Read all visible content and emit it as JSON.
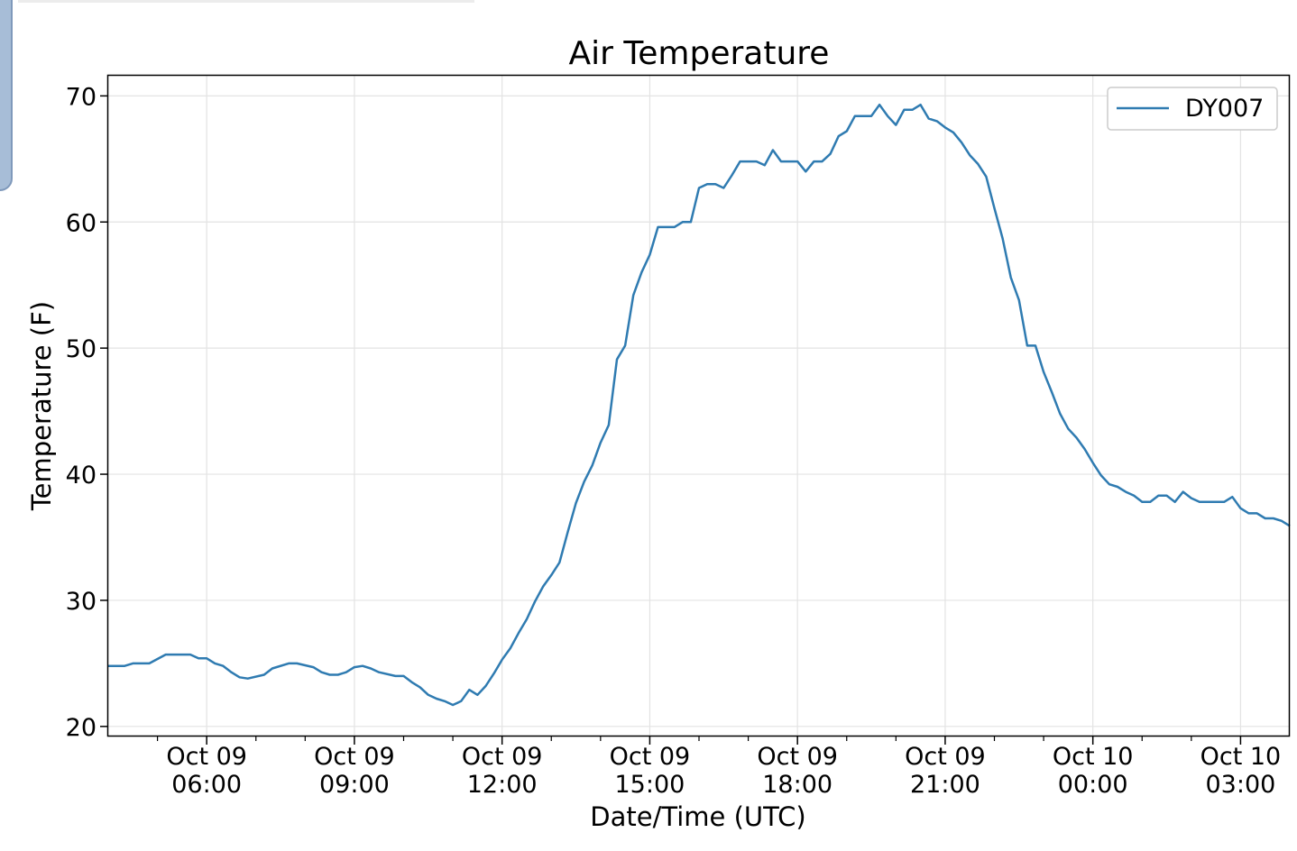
{
  "chart_data": {
    "type": "line",
    "title": "Air Temperature",
    "xlabel": "Date/Time (UTC)",
    "ylabel": "Temperature (F)",
    "xlim": [
      "2019-10-09T04:00",
      "2019-10-10T04:00"
    ],
    "ylim": [
      19.2,
      71.6
    ],
    "grid": true,
    "legend_position": "top-right",
    "x_ticks": [
      {
        "value": "2019-10-09T06:00",
        "label_line1": "Oct 09",
        "label_line2": "06:00"
      },
      {
        "value": "2019-10-09T09:00",
        "label_line1": "Oct 09",
        "label_line2": "09:00"
      },
      {
        "value": "2019-10-09T12:00",
        "label_line1": "Oct 09",
        "label_line2": "12:00"
      },
      {
        "value": "2019-10-09T15:00",
        "label_line1": "Oct 09",
        "label_line2": "15:00"
      },
      {
        "value": "2019-10-09T18:00",
        "label_line1": "Oct 09",
        "label_line2": "18:00"
      },
      {
        "value": "2019-10-09T21:00",
        "label_line1": "Oct 09",
        "label_line2": "21:00"
      },
      {
        "value": "2019-10-10T00:00",
        "label_line1": "Oct 10",
        "label_line2": "00:00"
      },
      {
        "value": "2019-10-10T03:00",
        "label_line1": "Oct 10",
        "label_line2": "03:00"
      }
    ],
    "x_minor_ticks": [
      "2019-10-09T05:00",
      "2019-10-09T07:00",
      "2019-10-09T08:00",
      "2019-10-09T10:00",
      "2019-10-09T11:00",
      "2019-10-09T13:00",
      "2019-10-09T14:00",
      "2019-10-09T16:00",
      "2019-10-09T17:00",
      "2019-10-09T19:00",
      "2019-10-09T20:00",
      "2019-10-09T22:00",
      "2019-10-09T23:00",
      "2019-10-10T01:00",
      "2019-10-10T02:00"
    ],
    "y_ticks": [
      20,
      30,
      40,
      50,
      60,
      70
    ],
    "series": [
      {
        "name": "DY007",
        "color": "#2f7bb1",
        "points": [
          [
            "2019-10-09T04:00",
            24.8
          ],
          [
            "2019-10-09T04:20",
            24.8
          ],
          [
            "2019-10-09T04:30",
            25.0
          ],
          [
            "2019-10-09T04:50",
            25.0
          ],
          [
            "2019-10-09T05:10",
            25.7
          ],
          [
            "2019-10-09T05:40",
            25.7
          ],
          [
            "2019-10-09T05:50",
            25.4
          ],
          [
            "2019-10-09T06:00",
            25.4
          ],
          [
            "2019-10-09T06:10",
            25.0
          ],
          [
            "2019-10-09T06:20",
            24.8
          ],
          [
            "2019-10-09T06:30",
            24.3
          ],
          [
            "2019-10-09T06:40",
            23.9
          ],
          [
            "2019-10-09T06:50",
            23.8
          ],
          [
            "2019-10-09T07:10",
            24.1
          ],
          [
            "2019-10-09T07:20",
            24.6
          ],
          [
            "2019-10-09T07:40",
            25.0
          ],
          [
            "2019-10-09T07:50",
            25.0
          ],
          [
            "2019-10-09T08:10",
            24.7
          ],
          [
            "2019-10-09T08:20",
            24.3
          ],
          [
            "2019-10-09T08:30",
            24.1
          ],
          [
            "2019-10-09T08:40",
            24.1
          ],
          [
            "2019-10-09T08:50",
            24.3
          ],
          [
            "2019-10-09T09:00",
            24.7
          ],
          [
            "2019-10-09T09:10",
            24.8
          ],
          [
            "2019-10-09T09:20",
            24.6
          ],
          [
            "2019-10-09T09:30",
            24.3
          ],
          [
            "2019-10-09T09:50",
            24.0
          ],
          [
            "2019-10-09T10:00",
            24.0
          ],
          [
            "2019-10-09T10:10",
            23.5
          ],
          [
            "2019-10-09T10:20",
            23.1
          ],
          [
            "2019-10-09T10:30",
            22.5
          ],
          [
            "2019-10-09T10:40",
            22.2
          ],
          [
            "2019-10-09T10:50",
            22.0
          ],
          [
            "2019-10-09T11:00",
            21.7
          ],
          [
            "2019-10-09T11:10",
            22.0
          ],
          [
            "2019-10-09T11:20",
            22.9
          ],
          [
            "2019-10-09T11:30",
            22.5
          ],
          [
            "2019-10-09T11:40",
            23.2
          ],
          [
            "2019-10-09T11:50",
            24.2
          ],
          [
            "2019-10-09T12:00",
            25.3
          ],
          [
            "2019-10-09T12:10",
            26.2
          ],
          [
            "2019-10-09T12:20",
            27.4
          ],
          [
            "2019-10-09T12:30",
            28.5
          ],
          [
            "2019-10-09T12:40",
            29.9
          ],
          [
            "2019-10-09T12:50",
            31.1
          ],
          [
            "2019-10-09T13:00",
            32.0
          ],
          [
            "2019-10-09T13:10",
            33.0
          ],
          [
            "2019-10-09T13:20",
            35.4
          ],
          [
            "2019-10-09T13:30",
            37.7
          ],
          [
            "2019-10-09T13:40",
            39.4
          ],
          [
            "2019-10-09T13:50",
            40.7
          ],
          [
            "2019-10-09T14:00",
            42.5
          ],
          [
            "2019-10-09T14:10",
            43.9
          ],
          [
            "2019-10-09T14:20",
            49.1
          ],
          [
            "2019-10-09T14:30",
            50.2
          ],
          [
            "2019-10-09T14:40",
            54.2
          ],
          [
            "2019-10-09T14:50",
            56.0
          ],
          [
            "2019-10-09T15:00",
            57.4
          ],
          [
            "2019-10-09T15:10",
            59.6
          ],
          [
            "2019-10-09T15:30",
            59.6
          ],
          [
            "2019-10-09T15:40",
            60.0
          ],
          [
            "2019-10-09T15:50",
            60.0
          ],
          [
            "2019-10-09T16:00",
            62.7
          ],
          [
            "2019-10-09T16:10",
            63.0
          ],
          [
            "2019-10-09T16:20",
            63.0
          ],
          [
            "2019-10-09T16:30",
            62.7
          ],
          [
            "2019-10-09T16:40",
            63.7
          ],
          [
            "2019-10-09T16:50",
            64.8
          ],
          [
            "2019-10-09T17:10",
            64.8
          ],
          [
            "2019-10-09T17:20",
            64.5
          ],
          [
            "2019-10-09T17:30",
            65.7
          ],
          [
            "2019-10-09T17:40",
            64.8
          ],
          [
            "2019-10-09T18:00",
            64.8
          ],
          [
            "2019-10-09T18:10",
            64.0
          ],
          [
            "2019-10-09T18:20",
            64.8
          ],
          [
            "2019-10-09T18:30",
            64.8
          ],
          [
            "2019-10-09T18:40",
            65.4
          ],
          [
            "2019-10-09T18:50",
            66.8
          ],
          [
            "2019-10-09T19:00",
            67.2
          ],
          [
            "2019-10-09T19:10",
            68.4
          ],
          [
            "2019-10-09T19:30",
            68.4
          ],
          [
            "2019-10-09T19:40",
            69.3
          ],
          [
            "2019-10-09T19:50",
            68.4
          ],
          [
            "2019-10-09T20:00",
            67.7
          ],
          [
            "2019-10-09T20:10",
            68.9
          ],
          [
            "2019-10-09T20:20",
            68.9
          ],
          [
            "2019-10-09T20:30",
            69.3
          ],
          [
            "2019-10-09T20:40",
            68.2
          ],
          [
            "2019-10-09T20:50",
            68.0
          ],
          [
            "2019-10-09T21:00",
            67.5
          ],
          [
            "2019-10-09T21:10",
            67.1
          ],
          [
            "2019-10-09T21:20",
            66.3
          ],
          [
            "2019-10-09T21:30",
            65.3
          ],
          [
            "2019-10-09T21:40",
            64.6
          ],
          [
            "2019-10-09T21:50",
            63.6
          ],
          [
            "2019-10-09T22:00",
            61.1
          ],
          [
            "2019-10-09T22:10",
            58.7
          ],
          [
            "2019-10-09T22:20",
            55.6
          ],
          [
            "2019-10-09T22:30",
            53.8
          ],
          [
            "2019-10-09T22:40",
            50.2
          ],
          [
            "2019-10-09T22:50",
            50.2
          ],
          [
            "2019-10-09T23:00",
            48.1
          ],
          [
            "2019-10-09T23:10",
            46.5
          ],
          [
            "2019-10-09T23:20",
            44.8
          ],
          [
            "2019-10-09T23:30",
            43.6
          ],
          [
            "2019-10-09T23:40",
            42.9
          ],
          [
            "2019-10-09T23:50",
            42.0
          ],
          [
            "2019-10-10T00:00",
            40.9
          ],
          [
            "2019-10-10T00:10",
            39.9
          ],
          [
            "2019-10-10T00:20",
            39.2
          ],
          [
            "2019-10-10T00:30",
            39.0
          ],
          [
            "2019-10-10T00:40",
            38.6
          ],
          [
            "2019-10-10T00:50",
            38.3
          ],
          [
            "2019-10-10T01:00",
            37.8
          ],
          [
            "2019-10-10T01:10",
            37.8
          ],
          [
            "2019-10-10T01:20",
            38.3
          ],
          [
            "2019-10-10T01:30",
            38.3
          ],
          [
            "2019-10-10T01:40",
            37.8
          ],
          [
            "2019-10-10T01:50",
            38.6
          ],
          [
            "2019-10-10T02:00",
            38.1
          ],
          [
            "2019-10-10T02:10",
            37.8
          ],
          [
            "2019-10-10T02:40",
            37.8
          ],
          [
            "2019-10-10T02:50",
            38.2
          ],
          [
            "2019-10-10T03:00",
            37.3
          ],
          [
            "2019-10-10T03:10",
            36.9
          ],
          [
            "2019-10-10T03:20",
            36.9
          ],
          [
            "2019-10-10T03:30",
            36.5
          ],
          [
            "2019-10-10T03:40",
            36.5
          ],
          [
            "2019-10-10T03:50",
            36.3
          ],
          [
            "2019-10-10T04:00",
            35.9
          ]
        ]
      }
    ]
  }
}
